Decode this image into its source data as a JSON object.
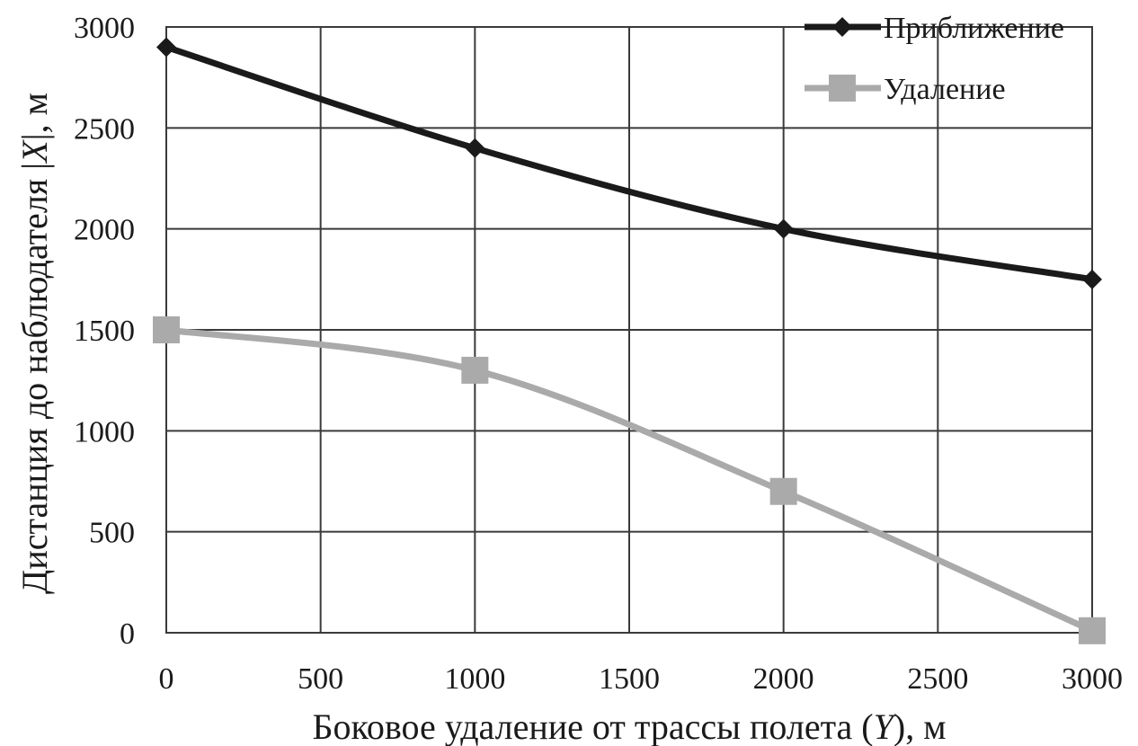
{
  "chart_data": {
    "type": "line",
    "title": "",
    "xlabel_parts": [
      "Боковое удаление от трассы полета (",
      "Y",
      "), м"
    ],
    "ylabel_parts": [
      "Дистанция до наблюдателя |",
      "X",
      "|, м"
    ],
    "xlim": [
      0,
      3000
    ],
    "ylim": [
      0,
      3000
    ],
    "xticks": [
      "0",
      "500",
      "1000",
      "1500",
      "2000",
      "2500",
      "3000"
    ],
    "yticks": [
      "0",
      "500",
      "1000",
      "1500",
      "2000",
      "2500",
      "3000"
    ],
    "grid": true,
    "legend_position": "top-right",
    "series": [
      {
        "name": "Приближение",
        "color": "#1a1a1a",
        "marker": "diamond",
        "x": [
          0,
          1000,
          2000,
          3000
        ],
        "y": [
          2900,
          2400,
          2000,
          1750
        ]
      },
      {
        "name": "Удаление",
        "color": "#aaaaaa",
        "marker": "square",
        "x": [
          0,
          1000,
          2000,
          3000
        ],
        "y": [
          1500,
          1300,
          700,
          10
        ]
      }
    ]
  }
}
